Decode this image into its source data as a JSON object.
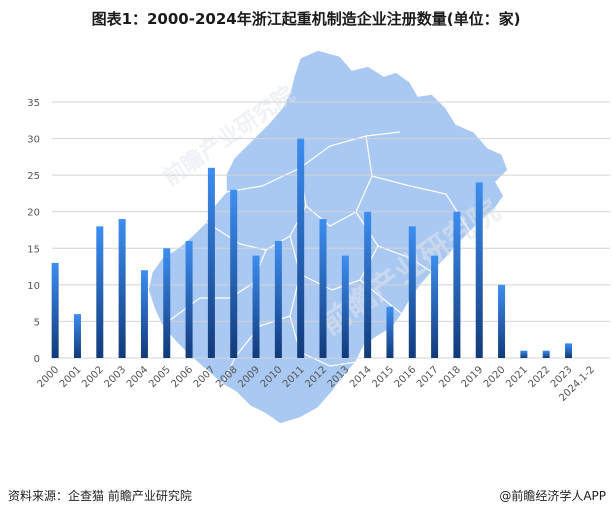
{
  "title": "图表1：2000-2024年浙江起重机制造企业注册数量(单位：家)",
  "source": "资料来源：企查猫 前瞻产业研究院",
  "brand": "@前瞻经济学人APP",
  "watermark": "前瞻产业研究院",
  "colors": {
    "bar_top": "#3d8ef0",
    "bar_bottom": "#123a7a",
    "map_fill": "#a9c8f2",
    "map_border": "#ffffff",
    "grid": "#d4d4d4"
  },
  "chart_data": {
    "type": "bar",
    "title": "图表1：2000-2024年浙江起重机制造企业注册数量(单位：家)",
    "categories": [
      "2000",
      "2001",
      "2002",
      "2003",
      "2004",
      "2005",
      "2006",
      "2007",
      "2008",
      "2009",
      "2010",
      "2011",
      "2012",
      "2013",
      "2014",
      "2015",
      "2016",
      "2017",
      "2018",
      "2019",
      "2020",
      "2021",
      "2022",
      "2023",
      "2024.1-2"
    ],
    "values": [
      13,
      6,
      18,
      19,
      12,
      15,
      16,
      26,
      23,
      14,
      16,
      30,
      19,
      14,
      20,
      7,
      18,
      14,
      20,
      24,
      10,
      1,
      1,
      2,
      0
    ],
    "xlabel": "",
    "ylabel": "",
    "ylim": [
      0,
      35
    ],
    "yticks": [
      "0",
      "5",
      "10",
      "15",
      "20",
      "25",
      "30",
      "35"
    ],
    "grid": true,
    "background": "浙江省地图"
  }
}
